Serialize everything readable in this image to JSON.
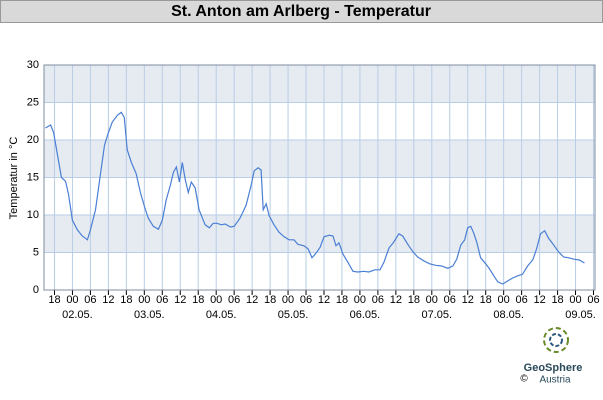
{
  "chart_data": {
    "type": "line",
    "title": "St. Anton am Arlberg - Temperatur",
    "y_label": "Temperatur in °C",
    "series": [
      {
        "name": "Temperatur",
        "color": "#4a7fd4",
        "x": [
          15,
          16.7,
          17.7,
          19,
          20.3,
          21.7,
          22.7,
          24,
          25.7,
          27.3,
          29,
          30,
          31.7,
          33.3,
          34.7,
          36,
          37.3,
          39,
          40.3,
          41.3,
          42.3,
          43.7,
          45.3,
          46.7,
          48,
          49.3,
          51,
          52.7,
          54,
          55.3,
          56.7,
          57.7,
          58.7,
          59.7,
          60.7,
          61.7,
          62.7,
          63.7,
          65,
          66.3,
          68.3,
          69.7,
          71,
          72.3,
          73.7,
          75,
          76.7,
          78,
          80,
          82,
          83.7,
          84.7,
          86,
          87,
          87.7,
          88.7,
          89.7,
          91.3,
          93,
          94.7,
          96.3,
          98,
          99.3,
          101.3,
          102.7,
          104,
          105.3,
          106.7,
          108,
          109.7,
          111,
          112,
          113,
          114.3,
          116,
          117.7,
          119.3,
          121.3,
          123,
          125,
          126.7,
          128,
          129.7,
          131.3,
          133,
          134.3,
          136,
          137.7,
          139.3,
          141.3,
          143.3,
          145.3,
          147.3,
          149.3,
          151,
          152.3,
          153.7,
          155,
          156,
          157,
          158,
          159,
          160.3,
          162,
          163.3,
          164.7,
          166,
          167.7,
          169.3,
          171,
          172.7,
          174.3,
          176,
          177.7,
          179,
          180.3,
          181.7,
          183,
          184.7,
          186.3,
          188,
          189.7,
          191.7,
          193.3,
          195
        ],
        "values": [
          21.6,
          22,
          21,
          18,
          15,
          14.5,
          12.7,
          9.3,
          8,
          7.2,
          6.7,
          8,
          10.7,
          15.3,
          19.3,
          21,
          22.4,
          23.3,
          23.7,
          23,
          18.7,
          17,
          15.5,
          13,
          11.2,
          9.6,
          8.5,
          8.1,
          9.3,
          12,
          14,
          15.7,
          16.4,
          14.4,
          17,
          14.7,
          13,
          14.4,
          13.6,
          10.7,
          8.7,
          8.3,
          8.9,
          8.9,
          8.7,
          8.8,
          8.4,
          8.5,
          9.6,
          11.3,
          14,
          15.9,
          16.3,
          16,
          10.7,
          11.5,
          9.9,
          8.7,
          7.7,
          7.1,
          6.7,
          6.7,
          6.1,
          5.9,
          5.5,
          4.3,
          4.9,
          5.7,
          7.1,
          7.3,
          7.2,
          5.9,
          6.3,
          4.8,
          3.7,
          2.5,
          2.4,
          2.5,
          2.4,
          2.7,
          2.7,
          3.7,
          5.6,
          6.4,
          7.5,
          7.2,
          6.1,
          5.1,
          4.4,
          3.9,
          3.5,
          3.3,
          3.2,
          2.9,
          3.2,
          4.1,
          6,
          6.7,
          8.3,
          8.5,
          7.6,
          6.4,
          4.3,
          3.5,
          2.8,
          1.9,
          1.1,
          0.8,
          1.2,
          1.6,
          1.9,
          2.1,
          3.2,
          4,
          5.5,
          7.5,
          7.9,
          6.9,
          6,
          5.1,
          4.4,
          4.3,
          4.1,
          4,
          3.6
        ]
      }
    ],
    "xlim": [
      14.5,
      198.5
    ],
    "xticks": [
      {
        "value": 18,
        "label": "18"
      },
      {
        "value": 24,
        "label": "00"
      },
      {
        "value": 30,
        "label": "06"
      },
      {
        "value": 36,
        "label": "12"
      },
      {
        "value": 42,
        "label": "18"
      },
      {
        "value": 48,
        "label": "00"
      },
      {
        "value": 54,
        "label": "06"
      },
      {
        "value": 60,
        "label": "12"
      },
      {
        "value": 66,
        "label": "18"
      },
      {
        "value": 72,
        "label": "00"
      },
      {
        "value": 78,
        "label": "06"
      },
      {
        "value": 84,
        "label": "12"
      },
      {
        "value": 90,
        "label": "18"
      },
      {
        "value": 96,
        "label": "00"
      },
      {
        "value": 102,
        "label": "06"
      },
      {
        "value": 108,
        "label": "12"
      },
      {
        "value": 114,
        "label": "18"
      },
      {
        "value": 120,
        "label": "00"
      },
      {
        "value": 126,
        "label": "06"
      },
      {
        "value": 132,
        "label": "12"
      },
      {
        "value": 138,
        "label": "18"
      },
      {
        "value": 144,
        "label": "00"
      },
      {
        "value": 150,
        "label": "06"
      },
      {
        "value": 156,
        "label": "12"
      },
      {
        "value": 162,
        "label": "18"
      },
      {
        "value": 168,
        "label": "00"
      },
      {
        "value": 174,
        "label": "06"
      },
      {
        "value": 180,
        "label": "12"
      },
      {
        "value": 186,
        "label": "18"
      },
      {
        "value": 192,
        "label": "00"
      },
      {
        "value": 198,
        "label": "06"
      }
    ],
    "date_ticks": [
      {
        "value": 24,
        "label": "02.05."
      },
      {
        "value": 48,
        "label": "03.05."
      },
      {
        "value": 72,
        "label": "04.05."
      },
      {
        "value": 96,
        "label": "05.05."
      },
      {
        "value": 120,
        "label": "06.05."
      },
      {
        "value": 144,
        "label": "07.05."
      },
      {
        "value": 168,
        "label": "08.05."
      },
      {
        "value": 192,
        "label": "09.05."
      }
    ],
    "ylim": [
      0,
      30
    ],
    "yticks": [
      0,
      5,
      10,
      15,
      20,
      25,
      30
    ],
    "grid": true,
    "logo": {
      "name": "GeoSphere",
      "sub": "Austria",
      "copyright": "©"
    }
  }
}
